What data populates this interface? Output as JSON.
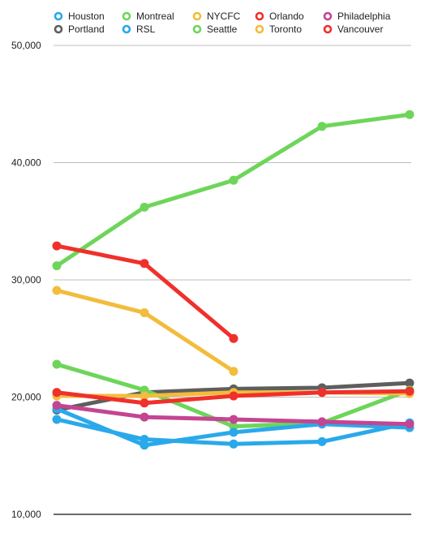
{
  "chart_data": {
    "type": "line",
    "title": "",
    "xlabel": "",
    "ylabel": "",
    "x": [
      1,
      2,
      3,
      4,
      5
    ],
    "ylim": [
      10000,
      50000
    ],
    "yticks": [
      10000,
      20000,
      30000,
      40000,
      50000
    ],
    "ytick_labels": [
      "10,000",
      "20,000",
      "30,000",
      "40,000",
      "50,000"
    ],
    "grid": true,
    "legend_position": "top",
    "series": [
      {
        "name": "Houston",
        "color": "#2aa9ea",
        "values": [
          18100,
          16400,
          16000,
          16200,
          17800
        ]
      },
      {
        "name": "Portland",
        "color": "#5e5e5e",
        "values": [
          18900,
          20400,
          20700,
          20800,
          21200
        ]
      },
      {
        "name": "Montreal",
        "color": "#6ed55a",
        "values": [
          22800,
          20600,
          17500,
          17800,
          20600
        ]
      },
      {
        "name": "RSL",
        "color": "#2aa9ea",
        "values": [
          19000,
          15900,
          17000,
          17700,
          17400
        ]
      },
      {
        "name": "NYCFC",
        "color": "#f2bc3c",
        "values": [
          29100,
          27200,
          22200,
          null,
          null
        ]
      },
      {
        "name": "Seattle",
        "color": "#6ed55a",
        "values": [
          31200,
          36200,
          38500,
          43100,
          44100
        ]
      },
      {
        "name": "Orlando",
        "color": "#f0302b",
        "values": [
          32900,
          31400,
          25000,
          null,
          null
        ]
      },
      {
        "name": "Toronto",
        "color": "#f2bc3c",
        "values": [
          20100,
          20100,
          20400,
          20400,
          20300
        ]
      },
      {
        "name": "Philadelphia",
        "color": "#c44591",
        "values": [
          19300,
          18300,
          18100,
          17900,
          17700
        ]
      },
      {
        "name": "Vancouver",
        "color": "#f0302b",
        "values": [
          20400,
          19500,
          20100,
          20400,
          20500
        ]
      }
    ]
  }
}
